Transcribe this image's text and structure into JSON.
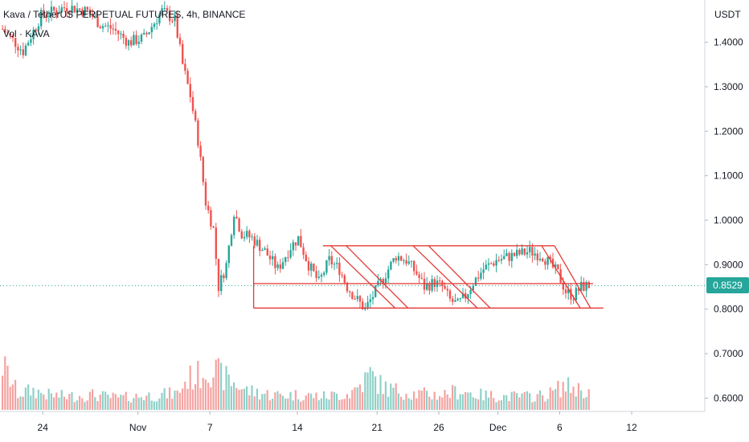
{
  "legend": {
    "title": "Kava / TetherUS PERPETUAL FUTURES, 4h, BINANCE",
    "volume_label": "Vol · KAVA"
  },
  "price_axis": {
    "currency": "USDT",
    "last_price_label": "0.8529"
  },
  "colors": {
    "up": "#26a69a",
    "down": "#ef5350",
    "vol_up": "#8fd0c8",
    "vol_down": "#f4a3a1",
    "drawing": "#e53935",
    "last_price": "#26a69a"
  },
  "chart_data": {
    "type": "candlestick",
    "title": "Kava / TetherUS PERPETUAL FUTURES, 4h, BINANCE",
    "ylabel": "USDT",
    "ylim": [
      0.57,
      1.495
    ],
    "y_ticks": [
      "1.4000",
      "1.3000",
      "1.2000",
      "1.1000",
      "1.0000",
      "0.9000",
      "0.8000",
      "0.7000",
      "0.6000"
    ],
    "x_ticks": [
      "24",
      "Nov",
      "7",
      "14",
      "21",
      "26",
      "Dec",
      "6",
      "12"
    ],
    "last_price": 0.8529,
    "price_path": [
      [
        0,
        1.43
      ],
      [
        8,
        1.38
      ],
      [
        15,
        1.46
      ],
      [
        25,
        1.48
      ],
      [
        33,
        1.47
      ],
      [
        38,
        1.44
      ],
      [
        43,
        1.43
      ],
      [
        49,
        1.4
      ],
      [
        55,
        1.41
      ],
      [
        62,
        1.47
      ],
      [
        67,
        1.45
      ],
      [
        70,
        1.35
      ],
      [
        73,
        1.28
      ],
      [
        76,
        1.18
      ],
      [
        79,
        1.04
      ],
      [
        82,
        0.98
      ],
      [
        84,
        0.85
      ],
      [
        87,
        0.9
      ],
      [
        90,
        1.02
      ],
      [
        93,
        0.97
      ],
      [
        97,
        0.96
      ],
      [
        102,
        0.93
      ],
      [
        107,
        0.89
      ],
      [
        112,
        0.94
      ],
      [
        115,
        0.96
      ],
      [
        119,
        0.9
      ],
      [
        123,
        0.86
      ],
      [
        127,
        0.91
      ],
      [
        131,
        0.89
      ],
      [
        134,
        0.85
      ],
      [
        138,
        0.82
      ],
      [
        141,
        0.8
      ],
      [
        144,
        0.83
      ],
      [
        148,
        0.87
      ],
      [
        153,
        0.92
      ],
      [
        157,
        0.91
      ],
      [
        161,
        0.88
      ],
      [
        164,
        0.85
      ],
      [
        168,
        0.86
      ],
      [
        171,
        0.85
      ],
      [
        174,
        0.82
      ],
      [
        177,
        0.81
      ],
      [
        180,
        0.83
      ],
      [
        183,
        0.86
      ],
      [
        187,
        0.89
      ],
      [
        192,
        0.91
      ],
      [
        198,
        0.92
      ],
      [
        205,
        0.93
      ],
      [
        210,
        0.92
      ],
      [
        213,
        0.9
      ],
      [
        216,
        0.88
      ],
      [
        219,
        0.84
      ],
      [
        222,
        0.83
      ],
      [
        225,
        0.85
      ],
      [
        228,
        0.853
      ]
    ],
    "volume_scale_max": 100,
    "volume_path": [
      [
        0,
        60
      ],
      [
        6,
        22
      ],
      [
        12,
        26
      ],
      [
        18,
        20
      ],
      [
        25,
        18
      ],
      [
        35,
        20
      ],
      [
        45,
        16
      ],
      [
        60,
        20
      ],
      [
        68,
        22
      ],
      [
        72,
        42
      ],
      [
        76,
        46
      ],
      [
        80,
        58
      ],
      [
        84,
        48
      ],
      [
        88,
        40
      ],
      [
        95,
        26
      ],
      [
        105,
        20
      ],
      [
        115,
        20
      ],
      [
        125,
        18
      ],
      [
        135,
        22
      ],
      [
        140,
        36
      ],
      [
        143,
        48
      ],
      [
        146,
        36
      ],
      [
        150,
        28
      ],
      [
        160,
        22
      ],
      [
        170,
        20
      ],
      [
        178,
        26
      ],
      [
        185,
        20
      ],
      [
        195,
        18
      ],
      [
        205,
        18
      ],
      [
        212,
        20
      ],
      [
        218,
        32
      ],
      [
        222,
        30
      ],
      [
        226,
        26
      ],
      [
        228,
        24
      ]
    ],
    "annotations": [
      {
        "kind": "horizontal-line",
        "price": 0.9425,
        "from_bar": 125,
        "to_bar": 215
      },
      {
        "kind": "horizontal-line",
        "price": 0.8575,
        "from_bar": 98,
        "to_bar": 230
      },
      {
        "kind": "horizontal-line",
        "price": 0.8025,
        "from_bar": 98,
        "to_bar": 234
      },
      {
        "kind": "vertical-line",
        "bar": 98,
        "from_price": 0.8025,
        "to_price": 0.9425
      },
      {
        "kind": "trend-line",
        "from": [
          134,
          0.9425
        ],
        "to": [
          158,
          0.8025
        ]
      },
      {
        "kind": "trend-line",
        "from": [
          128,
          0.9425
        ],
        "to": [
          153,
          0.8025
        ]
      },
      {
        "kind": "trend-line",
        "from": [
          166,
          0.9425
        ],
        "to": [
          190,
          0.8025
        ]
      },
      {
        "kind": "trend-line",
        "from": [
          160,
          0.9425
        ],
        "to": [
          185,
          0.8025
        ]
      },
      {
        "kind": "trend-line",
        "from": [
          215,
          0.9425
        ],
        "to": [
          229,
          0.8025
        ]
      },
      {
        "kind": "trend-line",
        "from": [
          210,
          0.9425
        ],
        "to": [
          225,
          0.8025
        ]
      }
    ]
  }
}
